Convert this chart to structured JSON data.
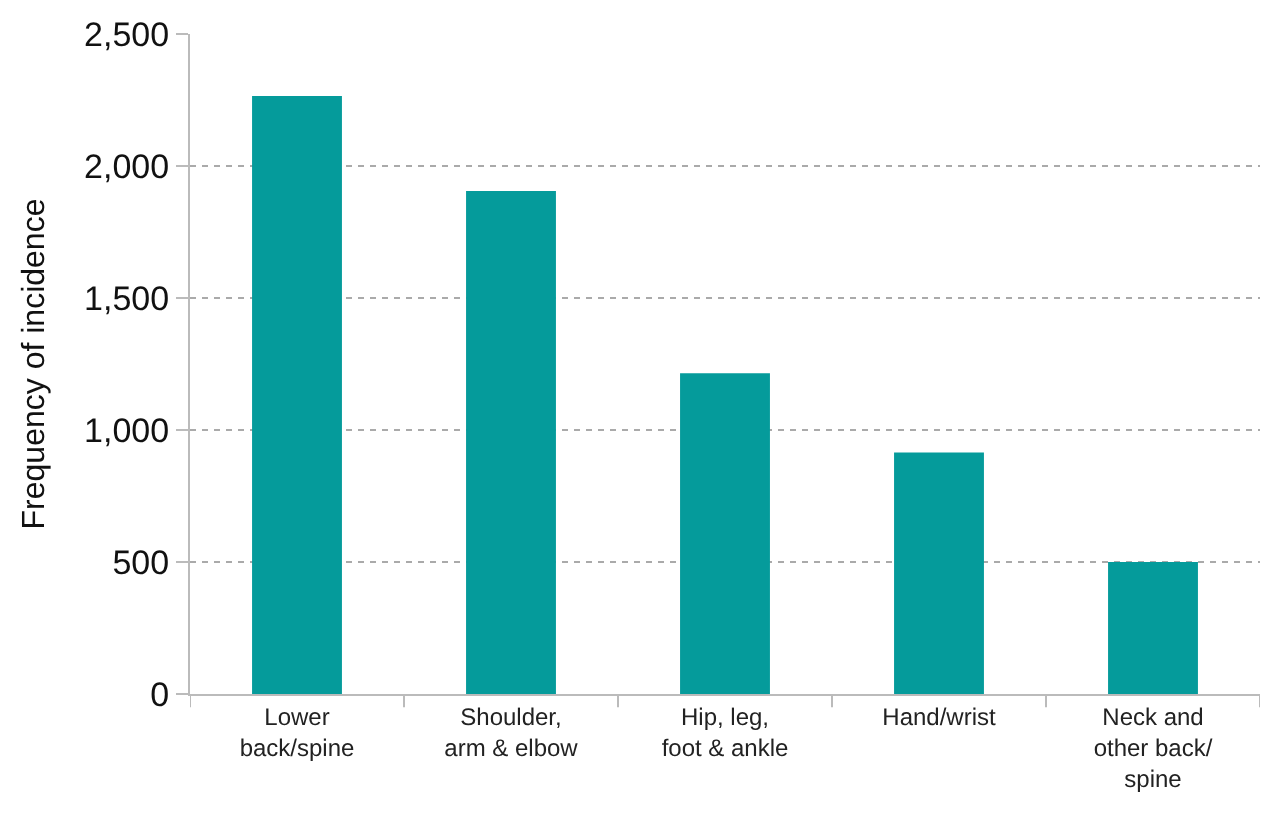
{
  "chart_data": {
    "type": "bar",
    "ylabel": "Frequency of incidence",
    "categories": [
      "Lower\nback/spine",
      "Shoulder,\narm & elbow",
      "Hip, leg,\nfoot & ankle",
      "Hand/wrist",
      "Neck and\nother back/\nspine"
    ],
    "values": [
      2265,
      1905,
      1215,
      915,
      500
    ],
    "color": "#059b9b",
    "ylim": [
      0,
      2500
    ],
    "yticks": [
      0,
      {
        "value": 500,
        "label": "500"
      },
      {
        "value": 1000,
        "label": "1,000"
      },
      {
        "value": 1500,
        "label": "1,500"
      },
      {
        "value": 2000,
        "label": "2,000"
      },
      {
        "value": 2500,
        "label": "2,500"
      }
    ],
    "grid": "y"
  }
}
